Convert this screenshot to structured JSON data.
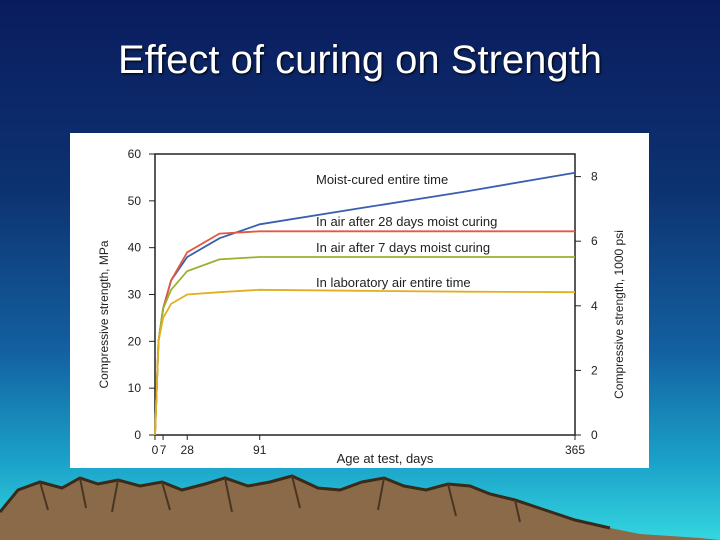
{
  "slide": {
    "title": "Effect of curing on Strength"
  },
  "colors": {
    "moist": "#3a5fb0",
    "air28": "#e05a40",
    "air7": "#9ab030",
    "lab": "#e0b020"
  },
  "chart_data": {
    "type": "line",
    "title": "",
    "xlabel": "Age at test, days",
    "ylabel": "Compressive strength, MPa",
    "y2label": "Compressive strength, 1000 psi",
    "xlim": [
      0,
      365
    ],
    "ylim": [
      0,
      60
    ],
    "y2lim": [
      0,
      8.7
    ],
    "x_ticks": [
      "0",
      "7",
      "28",
      "91",
      "365"
    ],
    "x_tick_values": [
      0,
      7,
      28,
      91,
      365
    ],
    "y_ticks": [
      "0",
      "10",
      "20",
      "30",
      "40",
      "50",
      "60"
    ],
    "y_tick_values": [
      0,
      10,
      20,
      30,
      40,
      50,
      60
    ],
    "y2_ticks": [
      "0",
      "2",
      "4",
      "6",
      "8"
    ],
    "y2_tick_values": [
      0,
      2,
      4,
      6,
      8
    ],
    "grid": false,
    "legend": "none",
    "series": [
      {
        "name": "Moist-cured entire time",
        "x": [
          0,
          3,
          7,
          14,
          28,
          56,
          91,
          180,
          270,
          365
        ],
        "y": [
          0,
          20,
          27,
          33,
          38,
          42,
          45,
          48.5,
          52,
          56
        ]
      },
      {
        "name": "In air after 28 days moist curing",
        "x": [
          0,
          3,
          7,
          14,
          28,
          56,
          91,
          180,
          270,
          365
        ],
        "y": [
          0,
          20,
          27,
          33,
          39,
          43,
          43.5,
          43.5,
          43.5,
          43.5
        ]
      },
      {
        "name": "In air after 7 days moist curing",
        "x": [
          0,
          3,
          7,
          14,
          28,
          56,
          91,
          180,
          270,
          365
        ],
        "y": [
          0,
          20,
          27,
          31,
          35,
          37.5,
          38,
          38,
          38,
          38
        ]
      },
      {
        "name": "In laboratory air entire time",
        "x": [
          0,
          3,
          7,
          14,
          28,
          56,
          91,
          180,
          270,
          365
        ],
        "y": [
          0,
          20,
          25,
          28,
          30,
          30.5,
          31,
          30.8,
          30.6,
          30.5
        ]
      }
    ]
  }
}
